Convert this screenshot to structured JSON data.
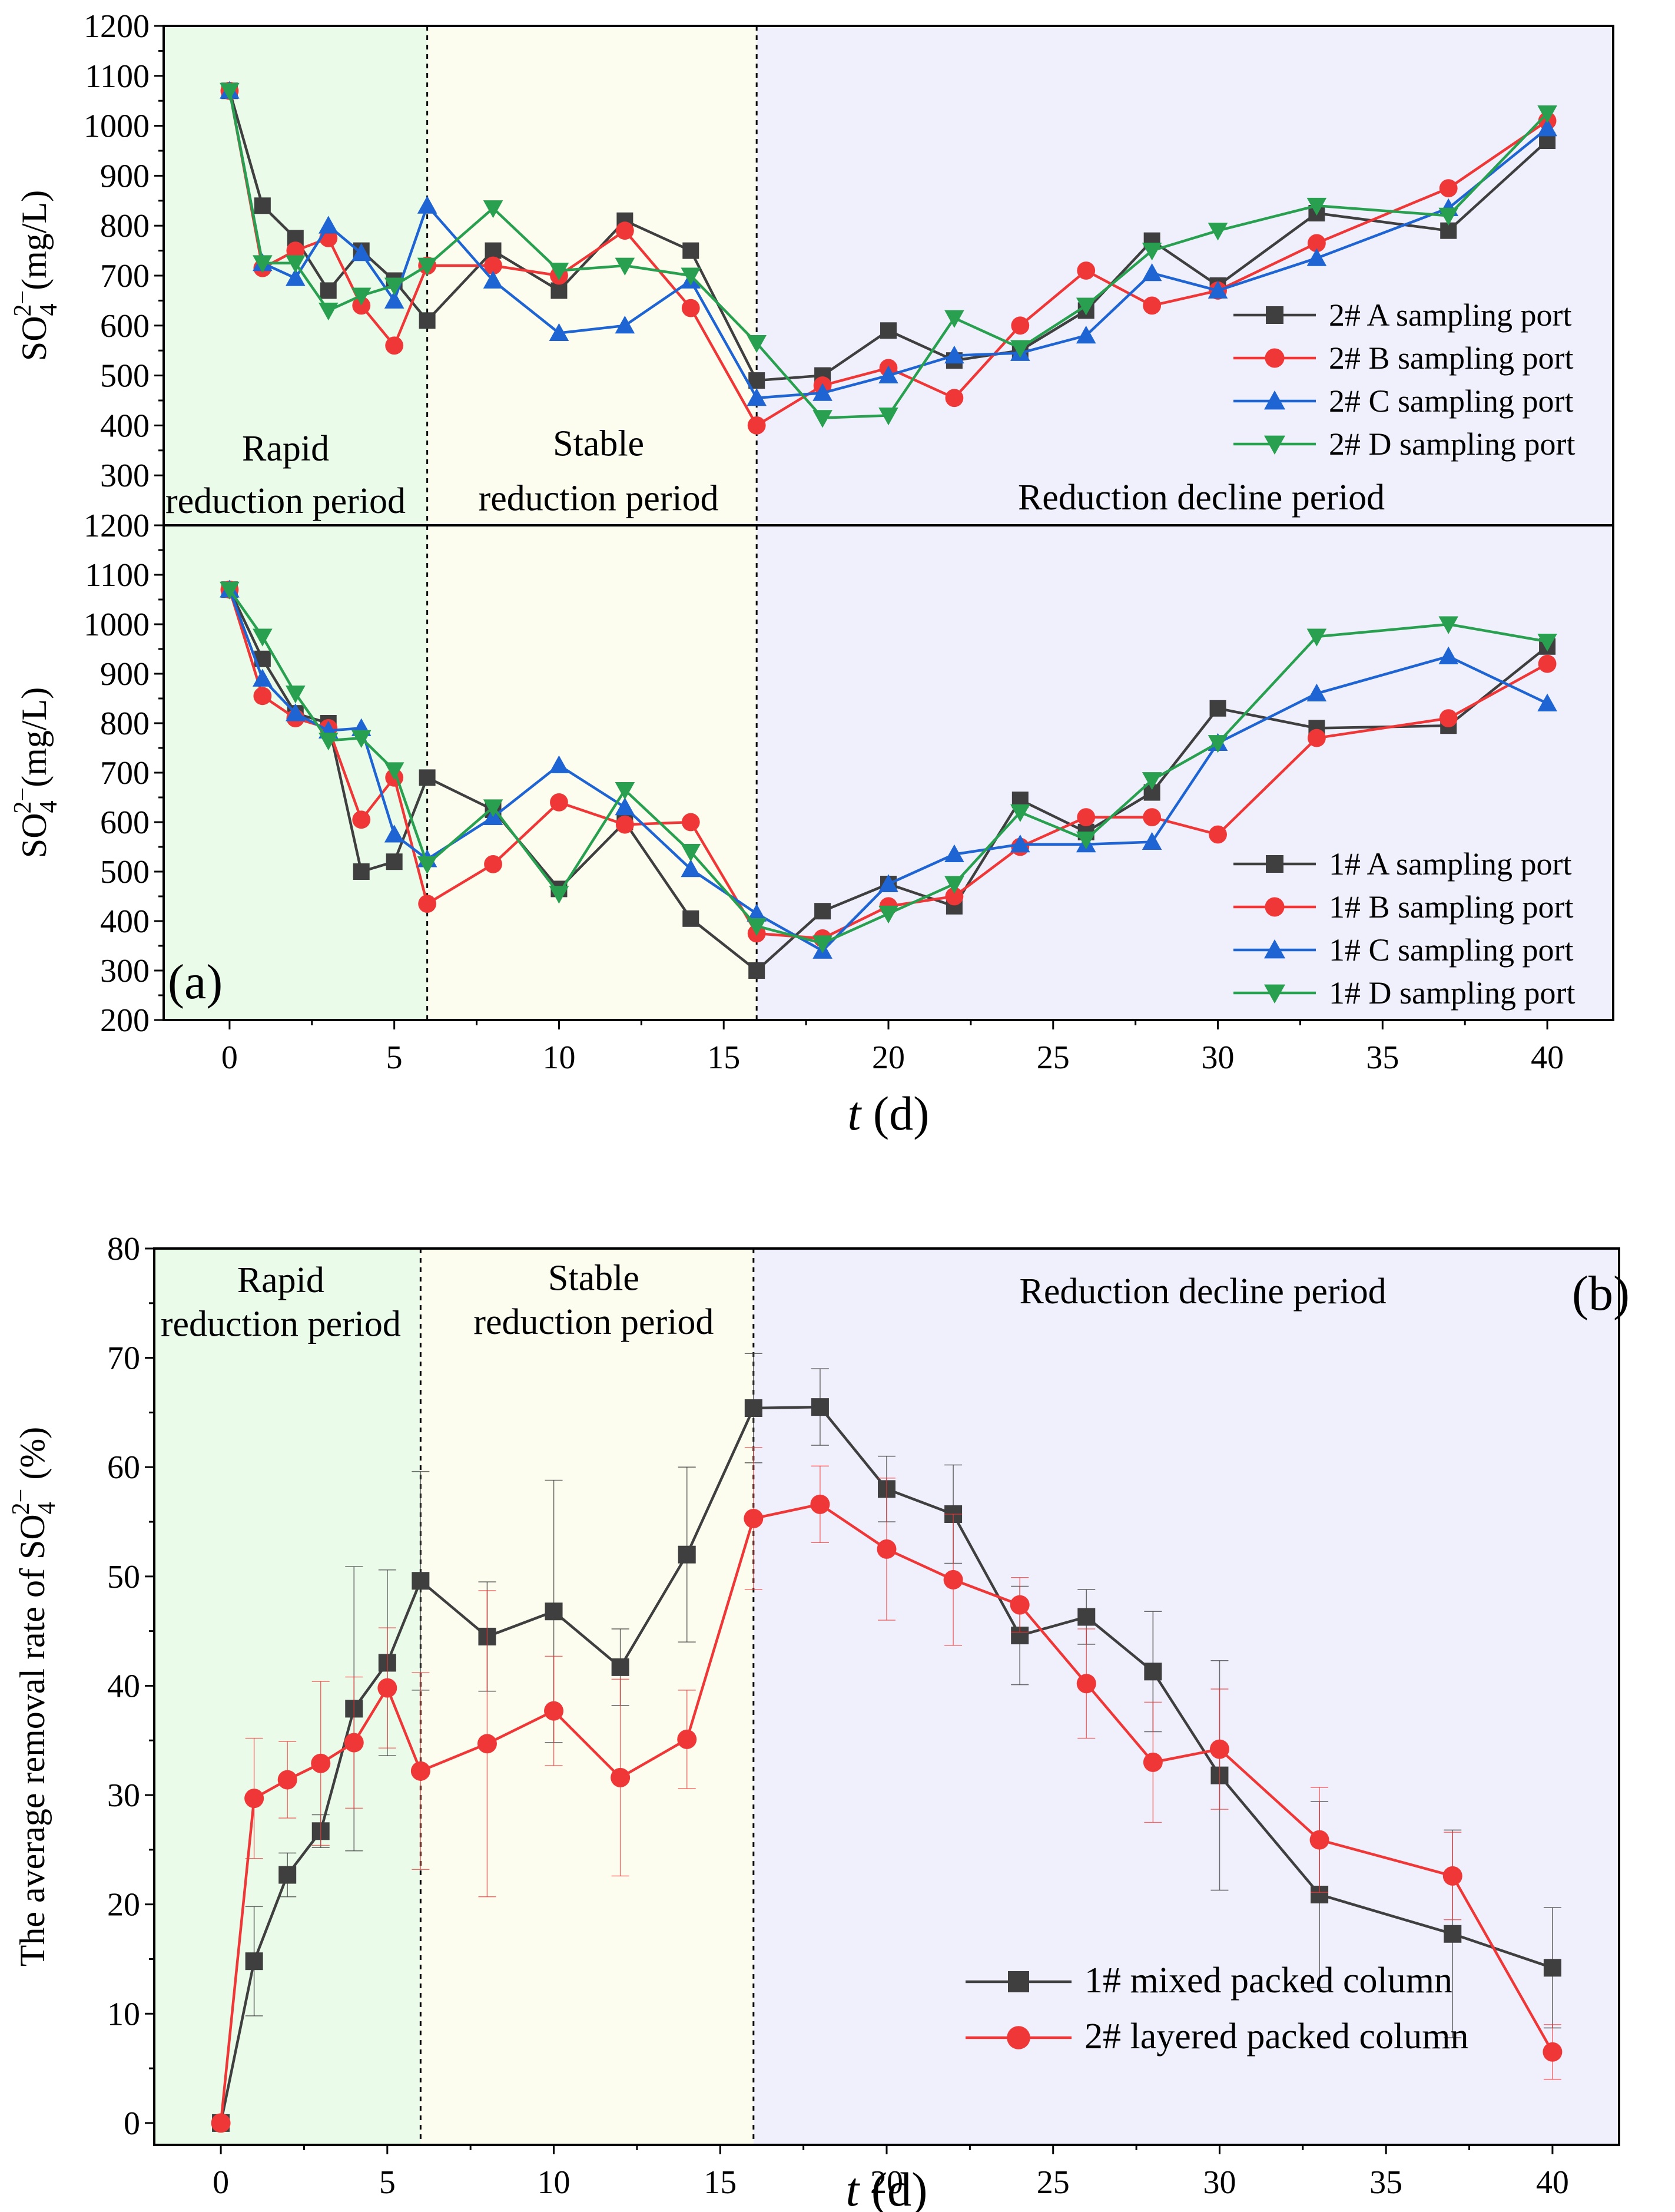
{
  "chart_data": [
    {
      "id": "top",
      "type": "line",
      "ylabel": "SO4 2−(mg/L)",
      "xlabel_italic": "",
      "xlabel_rest": "",
      "ylim": [
        200,
        1200
      ],
      "yticks": [
        300,
        400,
        500,
        600,
        700,
        800,
        900,
        1000,
        1100,
        1200
      ],
      "xlim": [
        -2,
        42
      ],
      "xticks": [],
      "periods": [
        {
          "name": "rapid",
          "from": -2,
          "to": 6,
          "color": "#eafbea",
          "lines": [
            "Rapid",
            "reduction period"
          ],
          "label_x": 1.7,
          "label_y": [
            330,
            225
          ]
        },
        {
          "name": "stable",
          "from": 6,
          "to": 16,
          "color": "#fdfdef",
          "lines": [
            "Stable",
            "reduction period"
          ],
          "label_x": 11.2,
          "label_y": [
            340,
            230
          ]
        },
        {
          "name": "decline",
          "from": 16,
          "to": 42,
          "color": "#f0f0fc",
          "lines": [
            "Reduction decline period"
          ],
          "label_x": 29.5,
          "label_y": [
            232
          ]
        }
      ],
      "series": [
        {
          "name": "2# A sampling port",
          "color": "#3f3f3f",
          "marker": "square",
          "x": [
            0,
            1,
            2,
            3,
            4,
            5,
            6,
            8,
            10,
            12,
            14,
            16,
            18,
            20,
            22,
            24,
            26,
            28,
            30,
            33,
            37,
            40
          ],
          "values": [
            1070,
            840,
            775,
            670,
            750,
            690,
            610,
            750,
            670,
            810,
            750,
            490,
            500,
            590,
            530,
            550,
            630,
            770,
            680,
            825,
            790,
            970
          ]
        },
        {
          "name": "2# B sampling port",
          "color": "#f03737",
          "marker": "circle",
          "x": [
            0,
            1,
            2,
            3,
            4,
            5,
            6,
            8,
            10,
            12,
            14,
            16,
            18,
            20,
            22,
            24,
            26,
            28,
            30,
            33,
            37,
            40
          ],
          "values": [
            1070,
            715,
            750,
            775,
            640,
            560,
            720,
            720,
            700,
            790,
            635,
            400,
            480,
            515,
            455,
            600,
            710,
            640,
            670,
            765,
            875,
            1010
          ]
        },
        {
          "name": "2# C sampling port",
          "color": "#1e64d2",
          "marker": "triangle-up",
          "x": [
            0,
            1,
            2,
            3,
            4,
            5,
            6,
            8,
            10,
            12,
            14,
            16,
            18,
            20,
            22,
            24,
            26,
            28,
            30,
            33,
            37,
            40
          ],
          "values": [
            1070,
            725,
            695,
            800,
            745,
            650,
            840,
            690,
            585,
            600,
            690,
            455,
            465,
            500,
            540,
            545,
            580,
            705,
            670,
            735,
            835,
            995
          ]
        },
        {
          "name": "2# D sampling port",
          "color": "#28a050",
          "marker": "triangle-down",
          "x": [
            0,
            1,
            2,
            3,
            4,
            5,
            6,
            8,
            10,
            12,
            14,
            16,
            18,
            20,
            22,
            24,
            26,
            28,
            30,
            33,
            37,
            40
          ],
          "values": [
            1070,
            725,
            725,
            630,
            660,
            680,
            720,
            835,
            710,
            720,
            700,
            565,
            415,
            420,
            615,
            555,
            640,
            750,
            790,
            840,
            820,
            1025
          ]
        }
      ]
    },
    {
      "id": "middle",
      "type": "line",
      "ylabel": "SO4 2−(mg/L)",
      "xlabel_italic": "t",
      "xlabel_rest": " (d)",
      "ylim": [
        200,
        1200
      ],
      "yticks": [
        200,
        300,
        400,
        500,
        600,
        700,
        800,
        900,
        1000,
        1100,
        1200
      ],
      "xlim": [
        -2,
        42
      ],
      "xticks": [
        0,
        5,
        10,
        15,
        20,
        25,
        30,
        35,
        40
      ],
      "panel_tag": "(a)",
      "periods": [
        {
          "name": "rapid",
          "from": -2,
          "to": 6,
          "color": "#eafbea"
        },
        {
          "name": "stable",
          "from": 6,
          "to": 16,
          "color": "#fdfdef"
        },
        {
          "name": "decline",
          "from": 16,
          "to": 42,
          "color": "#f0f0fc"
        }
      ],
      "series": [
        {
          "name": "1# A sampling port",
          "color": "#3f3f3f",
          "marker": "square",
          "x": [
            0,
            1,
            2,
            3,
            4,
            5,
            6,
            8,
            10,
            12,
            14,
            16,
            18,
            20,
            22,
            24,
            26,
            28,
            30,
            33,
            37,
            40
          ],
          "values": [
            1070,
            930,
            820,
            800,
            500,
            520,
            690,
            625,
            465,
            600,
            405,
            300,
            420,
            475,
            430,
            645,
            580,
            660,
            830,
            790,
            795,
            955
          ]
        },
        {
          "name": "1# B sampling port",
          "color": "#f03737",
          "marker": "circle",
          "x": [
            0,
            1,
            2,
            3,
            4,
            5,
            6,
            8,
            10,
            12,
            14,
            16,
            18,
            20,
            22,
            24,
            26,
            28,
            30,
            33,
            37,
            40
          ],
          "values": [
            1070,
            855,
            810,
            790,
            605,
            690,
            435,
            515,
            640,
            595,
            600,
            375,
            365,
            430,
            450,
            550,
            610,
            610,
            575,
            770,
            810,
            920
          ]
        },
        {
          "name": "1# C sampling port",
          "color": "#1e64d2",
          "marker": "triangle-up",
          "x": [
            0,
            1,
            2,
            3,
            4,
            5,
            6,
            8,
            10,
            12,
            14,
            16,
            18,
            20,
            22,
            24,
            26,
            28,
            30,
            33,
            37,
            40
          ],
          "values": [
            1070,
            890,
            820,
            785,
            790,
            575,
            525,
            610,
            715,
            630,
            505,
            415,
            340,
            475,
            535,
            555,
            555,
            560,
            760,
            860,
            935,
            840
          ]
        },
        {
          "name": "1# D sampling port",
          "color": "#28a050",
          "marker": "triangle-down",
          "x": [
            0,
            1,
            2,
            3,
            4,
            5,
            6,
            8,
            10,
            12,
            14,
            16,
            18,
            20,
            22,
            24,
            26,
            28,
            30,
            33,
            37,
            40
          ],
          "values": [
            1070,
            975,
            860,
            765,
            770,
            705,
            515,
            630,
            455,
            665,
            540,
            390,
            355,
            415,
            475,
            620,
            565,
            685,
            760,
            975,
            1000,
            965
          ]
        }
      ]
    },
    {
      "id": "bottom",
      "type": "line",
      "ylabel": "The average removal rate of SO4 2− (%)",
      "xlabel_italic": "t",
      "xlabel_rest": " (d)",
      "ylim": [
        -2,
        80
      ],
      "yticks": [
        0,
        10,
        20,
        30,
        40,
        50,
        60,
        70,
        80
      ],
      "xlim": [
        -2,
        42
      ],
      "xticks": [
        0,
        5,
        10,
        15,
        20,
        25,
        30,
        35,
        40
      ],
      "panel_tag": "(b)",
      "periods": [
        {
          "name": "rapid",
          "from": -2,
          "to": 6,
          "color": "#eafbea",
          "lines": [
            "Rapid",
            "reduction period"
          ],
          "label_x": 1.8,
          "label_y": [
            76,
            72
          ]
        },
        {
          "name": "stable",
          "from": 6,
          "to": 16,
          "color": "#fdfdef",
          "lines": [
            "Stable",
            "reduction period"
          ],
          "label_x": 11.2,
          "label_y": [
            76.2,
            72.2
          ]
        },
        {
          "name": "decline",
          "from": 16,
          "to": 42,
          "color": "#f0f0fc",
          "lines": [
            "Reduction decline period"
          ],
          "label_x": 29.5,
          "label_y": [
            75
          ]
        }
      ],
      "series": [
        {
          "name": "1# mixed packed column",
          "color": "#3f3f3f",
          "marker": "square",
          "x": [
            0,
            1,
            2,
            3,
            4,
            5,
            6,
            8,
            10,
            12,
            14,
            16,
            18,
            20,
            22,
            24,
            26,
            28,
            30,
            33,
            37,
            40
          ],
          "values": [
            0,
            14.8,
            22.7,
            26.7,
            37.9,
            42.1,
            49.6,
            44.5,
            46.8,
            41.7,
            52.0,
            65.4,
            65.5,
            58.0,
            55.7,
            44.6,
            46.3,
            41.3,
            31.8,
            20.9,
            17.3,
            14.2
          ],
          "errors": [
            0,
            5,
            2,
            1.5,
            13,
            8.5,
            10,
            5,
            12,
            3.5,
            8,
            5,
            3.5,
            3,
            4.5,
            4.5,
            2.5,
            5.5,
            10.5,
            8.5,
            9.5,
            5.5
          ]
        },
        {
          "name": "2# layered packed column",
          "color": "#f03737",
          "marker": "circle",
          "x": [
            0,
            1,
            2,
            3,
            4,
            5,
            6,
            8,
            10,
            12,
            14,
            16,
            18,
            20,
            22,
            24,
            26,
            28,
            30,
            33,
            37,
            40
          ],
          "values": [
            0,
            29.7,
            31.4,
            32.9,
            34.8,
            39.8,
            32.2,
            34.7,
            37.7,
            31.6,
            35.1,
            55.3,
            56.6,
            52.5,
            49.7,
            47.4,
            40.2,
            33.0,
            34.2,
            25.9,
            22.6,
            6.5
          ],
          "errors": [
            0,
            5.5,
            3.5,
            7.5,
            6,
            5.5,
            9,
            14,
            5,
            9,
            4.5,
            6.5,
            3.5,
            6.5,
            6,
            2.5,
            5,
            5.5,
            5.5,
            4.8,
            4,
            2.5
          ]
        }
      ]
    }
  ]
}
